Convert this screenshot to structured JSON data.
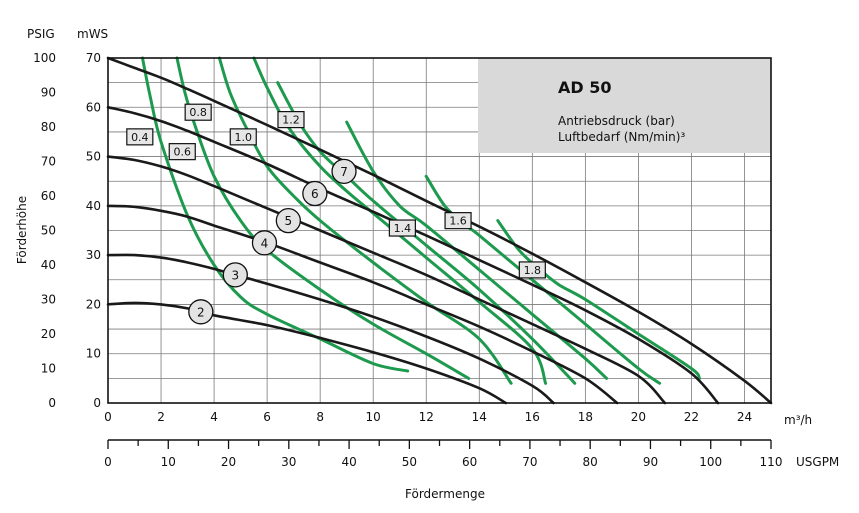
{
  "chart_data": {
    "type": "line",
    "title": "AD 50",
    "subtitle_line1": "Antriebsdruck (bar)",
    "subtitle_line2": "Luftbedarf (Nm/min)³",
    "xlabel": "Fördermenge",
    "ylabel": "Förderhöhe",
    "x_unit": "m³/h",
    "x2_unit": "USGPM",
    "y_unit": "mWS",
    "y2_unit": "PSIG",
    "xlim": [
      0,
      25
    ],
    "ylim": [
      0,
      70
    ],
    "x2lim": [
      0,
      110
    ],
    "y2lim": [
      0,
      100
    ],
    "x_ticks": [
      "0",
      "2",
      "4",
      "6",
      "8",
      "10",
      "12",
      "14",
      "16",
      "18",
      "20",
      "22",
      "24"
    ],
    "y_ticks": [
      "0",
      "10",
      "20",
      "30",
      "40",
      "50",
      "60",
      "70"
    ],
    "x2_ticks": [
      "0",
      "10",
      "20",
      "30",
      "40",
      "50",
      "60",
      "70",
      "80",
      "90",
      "100",
      "110"
    ],
    "y2_ticks": [
      "0",
      "10",
      "20",
      "30",
      "40",
      "50",
      "60",
      "70",
      "80",
      "90",
      "100"
    ],
    "grid": true,
    "colors": {
      "pressure": "#1a1a1a",
      "air": "#1e9a4e",
      "title_box": "#d9d9d9",
      "grid": "#7a7a7a"
    },
    "pressure_series": [
      {
        "name": "2",
        "label_at": [
          3.5,
          18.5
        ],
        "points": [
          [
            0,
            20
          ],
          [
            1,
            20.3
          ],
          [
            2,
            20
          ],
          [
            3,
            19.2
          ],
          [
            4,
            17.8
          ],
          [
            6,
            15.8
          ],
          [
            8,
            13.2
          ],
          [
            10,
            10.3
          ],
          [
            12,
            7
          ],
          [
            14,
            3
          ],
          [
            15,
            0
          ]
        ]
      },
      {
        "name": "3",
        "label_at": [
          4.8,
          26
        ],
        "points": [
          [
            0,
            30
          ],
          [
            1,
            30
          ],
          [
            2,
            29.5
          ],
          [
            3,
            28.5
          ],
          [
            4,
            27.2
          ],
          [
            6,
            24.2
          ],
          [
            8,
            21
          ],
          [
            10,
            17.5
          ],
          [
            12,
            13.5
          ],
          [
            14,
            9
          ],
          [
            16,
            3.5
          ],
          [
            16.8,
            0
          ]
        ]
      },
      {
        "name": "4",
        "label_at": [
          5.9,
          32.5
        ],
        "points": [
          [
            0,
            40
          ],
          [
            1,
            39.8
          ],
          [
            2,
            39
          ],
          [
            3,
            37.8
          ],
          [
            4,
            36
          ],
          [
            6,
            32.5
          ],
          [
            8,
            28.5
          ],
          [
            10,
            24.5
          ],
          [
            12,
            20
          ],
          [
            14,
            15.5
          ],
          [
            16,
            10.5
          ],
          [
            18,
            5
          ],
          [
            19.2,
            0
          ]
        ]
      },
      {
        "name": "5",
        "label_at": [
          6.8,
          37
        ],
        "points": [
          [
            0,
            50
          ],
          [
            1,
            49.3
          ],
          [
            2,
            48
          ],
          [
            3,
            46.2
          ],
          [
            4,
            44
          ],
          [
            6,
            39.5
          ],
          [
            8,
            35
          ],
          [
            10,
            30.5
          ],
          [
            12,
            26
          ],
          [
            14,
            21
          ],
          [
            16,
            16
          ],
          [
            18,
            11
          ],
          [
            20,
            5.5
          ],
          [
            21,
            0
          ]
        ]
      },
      {
        "name": "6",
        "label_at": [
          7.8,
          42.5
        ],
        "points": [
          [
            0,
            60
          ],
          [
            1,
            58.8
          ],
          [
            2,
            57.2
          ],
          [
            3,
            55.2
          ],
          [
            4,
            53
          ],
          [
            6,
            48.5
          ],
          [
            8,
            43.5
          ],
          [
            10,
            38.8
          ],
          [
            12,
            34
          ],
          [
            14,
            29
          ],
          [
            16,
            24
          ],
          [
            18,
            18.8
          ],
          [
            20,
            13
          ],
          [
            22,
            6
          ],
          [
            23,
            0
          ]
        ]
      },
      {
        "name": "7",
        "label_at": [
          8.9,
          47
        ],
        "points": [
          [
            0,
            70
          ],
          [
            1,
            68
          ],
          [
            2,
            66
          ],
          [
            3,
            63.7
          ],
          [
            4,
            61.3
          ],
          [
            6,
            56.4
          ],
          [
            8,
            51.4
          ],
          [
            10,
            46.3
          ],
          [
            12,
            41
          ],
          [
            14,
            35.8
          ],
          [
            16,
            30.3
          ],
          [
            18,
            24.5
          ],
          [
            20,
            18.5
          ],
          [
            22,
            12
          ],
          [
            24,
            4.5
          ],
          [
            25,
            0
          ]
        ]
      }
    ],
    "air_series": [
      {
        "name": "0.4",
        "label_at": [
          1.2,
          54
        ],
        "points": [
          [
            1.3,
            70
          ],
          [
            1.6,
            62
          ],
          [
            2,
            53
          ],
          [
            3,
            38
          ],
          [
            4,
            28
          ],
          [
            5,
            21.5
          ],
          [
            6,
            18
          ],
          [
            8,
            13
          ],
          [
            10,
            8
          ],
          [
            11.3,
            6.5
          ]
        ]
      },
      {
        "name": "0.6",
        "label_at": [
          2.8,
          51
        ],
        "points": [
          [
            2.6,
            70
          ],
          [
            2.9,
            63
          ],
          [
            3.3,
            56
          ],
          [
            4,
            46
          ],
          [
            5,
            37
          ],
          [
            6,
            31
          ],
          [
            8,
            23
          ],
          [
            10,
            16
          ],
          [
            12,
            10
          ],
          [
            13.6,
            5
          ]
        ]
      },
      {
        "name": "0.8",
        "label_at": [
          3.4,
          59
        ],
        "points": [
          [
            4.2,
            70
          ],
          [
            4.6,
            63
          ],
          [
            5.2,
            56
          ],
          [
            6,
            48
          ],
          [
            7,
            42
          ],
          [
            8,
            37
          ],
          [
            10,
            28.5
          ],
          [
            12,
            20.5
          ],
          [
            14,
            13
          ],
          [
            15.2,
            4
          ]
        ]
      },
      {
        "name": "1.0",
        "label_at": [
          5.1,
          54
        ],
        "points": [
          [
            5.5,
            70
          ],
          [
            6,
            64
          ],
          [
            6.8,
            56
          ],
          [
            8,
            48
          ],
          [
            9,
            43
          ],
          [
            10,
            38.5
          ],
          [
            12,
            29.5
          ],
          [
            14,
            20.5
          ],
          [
            16,
            11
          ],
          [
            16.5,
            4
          ]
        ]
      },
      {
        "name": "1.2",
        "label_at": [
          6.9,
          57.5
        ],
        "points": [
          [
            6.4,
            65
          ],
          [
            7.2,
            57
          ],
          [
            8,
            51
          ],
          [
            9,
            46
          ],
          [
            10,
            41
          ],
          [
            12,
            32
          ],
          [
            14,
            23
          ],
          [
            16,
            13
          ],
          [
            17.6,
            4
          ]
        ]
      },
      {
        "name": "1.4",
        "label_at": [
          11.1,
          35.5
        ],
        "points": [
          [
            9,
            57
          ],
          [
            10,
            47
          ],
          [
            11,
            40
          ],
          [
            12,
            36
          ],
          [
            14,
            27
          ],
          [
            16,
            18
          ],
          [
            18,
            9
          ],
          [
            18.8,
            5
          ]
        ]
      },
      {
        "name": "1.6",
        "label_at": [
          13.2,
          37
        ],
        "points": [
          [
            12,
            46
          ],
          [
            12.7,
            40
          ],
          [
            13.5,
            36
          ],
          [
            14,
            34
          ],
          [
            16,
            25
          ],
          [
            18,
            16
          ],
          [
            20,
            7
          ],
          [
            20.8,
            4
          ]
        ]
      },
      {
        "name": "1.8",
        "label_at": [
          16,
          27
        ],
        "points": [
          [
            14.7,
            37
          ],
          [
            15.5,
            31
          ],
          [
            16.3,
            27
          ],
          [
            17,
            24
          ],
          [
            18,
            21
          ],
          [
            20,
            14
          ],
          [
            22,
            7
          ],
          [
            22.3,
            5
          ]
        ]
      }
    ]
  }
}
